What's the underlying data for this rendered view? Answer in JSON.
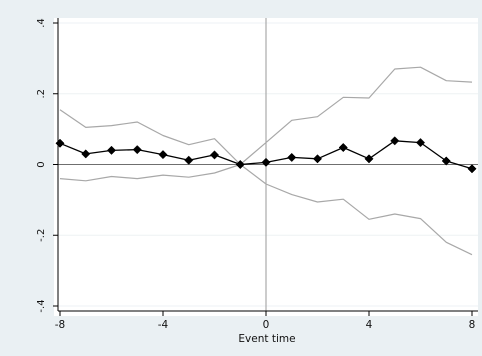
{
  "chart_data": {
    "type": "line",
    "title": "",
    "xlabel": "Event time",
    "ylabel": "",
    "xlim": [
      -8,
      8
    ],
    "ylim": [
      -0.4,
      0.4
    ],
    "xticks": [
      -8,
      -4,
      0,
      4,
      8
    ],
    "xtick_labels": [
      "-8",
      "-4",
      "0",
      "4",
      "8"
    ],
    "yticks": [
      -0.4,
      -0.2,
      0,
      0.2,
      0.4
    ],
    "ytick_labels": [
      "-.4",
      "-.2",
      "0",
      ".2",
      ".4"
    ],
    "grid": "horizontal",
    "reference_lines": {
      "x": 0,
      "y": 0
    },
    "x": [
      -8,
      -7,
      -6,
      -5,
      -4,
      -3,
      -2,
      -1,
      0,
      1,
      2,
      3,
      4,
      5,
      6,
      7,
      8
    ],
    "series": [
      {
        "role": "point-estimate",
        "style": "black line with diamond markers",
        "color": "#000000",
        "values": [
          0.06,
          0.03,
          0.04,
          0.042,
          0.028,
          0.012,
          0.027,
          0.0,
          0.006,
          0.02,
          0.016,
          0.048,
          0.016,
          0.067,
          0.062,
          0.01,
          -0.012
        ]
      },
      {
        "role": "upper-ci",
        "style": "gray line",
        "color": "#a8a8a8",
        "values": [
          0.155,
          0.105,
          0.11,
          0.12,
          0.082,
          0.056,
          0.073,
          0.0,
          0.062,
          0.125,
          0.135,
          0.19,
          0.188,
          0.27,
          0.275,
          0.237,
          0.233
        ]
      },
      {
        "role": "lower-ci",
        "style": "gray line",
        "color": "#a8a8a8",
        "values": [
          -0.04,
          -0.046,
          -0.034,
          -0.04,
          -0.03,
          -0.036,
          -0.024,
          0.0,
          -0.055,
          -0.085,
          -0.106,
          -0.098,
          -0.155,
          -0.14,
          -0.153,
          -0.22,
          -0.255
        ]
      }
    ]
  }
}
